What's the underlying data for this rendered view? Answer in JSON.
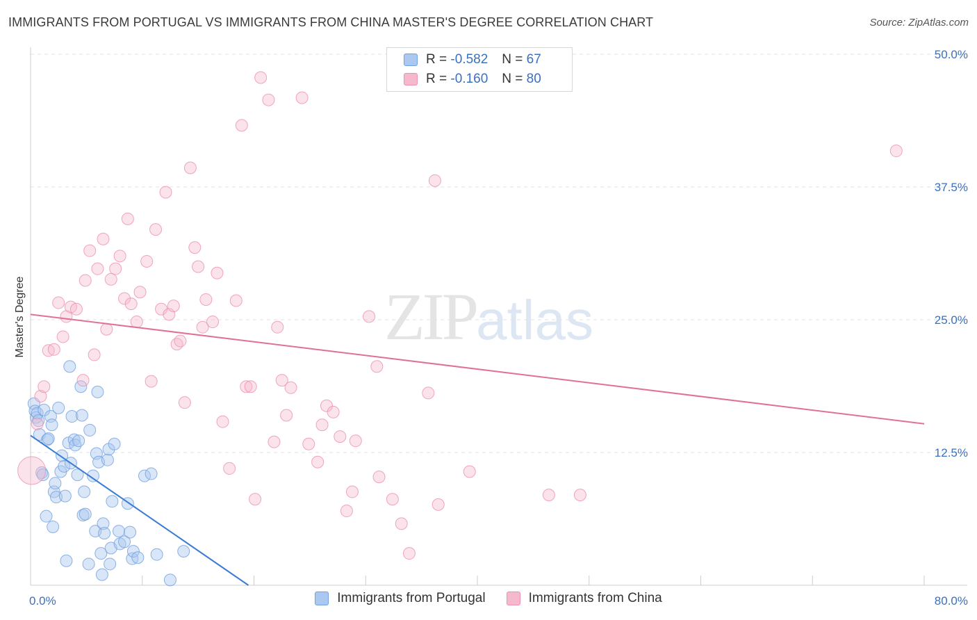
{
  "title": "IMMIGRANTS FROM PORTUGAL VS IMMIGRANTS FROM CHINA MASTER'S DEGREE CORRELATION CHART",
  "source": "Source: ZipAtlas.com",
  "watermark": {
    "zip": "ZIP",
    "atlas": "atlas"
  },
  "legend": {
    "rows": [
      {
        "r_label": "R = ",
        "r_value": "-0.582",
        "n_label": "N = ",
        "n_value": "67",
        "color": "#aac8f0"
      },
      {
        "r_label": "R = ",
        "r_value": "-0.160",
        "n_label": "N = ",
        "n_value": "80",
        "color": "#f5b8cc"
      }
    ]
  },
  "colors": {
    "portugal": "#6fa0e0",
    "china": "#ee8fb0",
    "portugal_line": "#3a7bd5",
    "china_line": "#e0709a"
  },
  "chart_data": {
    "type": "scatter",
    "title": "IMMIGRANTS FROM PORTUGAL VS IMMIGRANTS FROM CHINA MASTER'S DEGREE CORRELATION CHART",
    "ylabel": "Master's Degree",
    "xlim": [
      0,
      80
    ],
    "ylim": [
      0,
      50
    ],
    "x_tick_labels": [
      "0.0%",
      "80.0%"
    ],
    "y_ticks": [
      12.5,
      25.0,
      37.5,
      50.0
    ],
    "y_tick_labels": [
      "12.5%",
      "25.0%",
      "37.5%",
      "50.0%"
    ],
    "grid": true,
    "legend_position": "top-center",
    "series": [
      {
        "name": "Immigrants from Portugal",
        "points": [
          [
            0.3,
            17.1
          ],
          [
            0.4,
            16.4
          ],
          [
            0.5,
            15.8
          ],
          [
            0.6,
            16.2
          ],
          [
            0.7,
            15.5
          ],
          [
            0.8,
            14.2
          ],
          [
            1.0,
            10.6
          ],
          [
            1.1,
            10.4
          ],
          [
            1.2,
            16.5
          ],
          [
            1.4,
            6.5
          ],
          [
            1.5,
            13.7
          ],
          [
            1.6,
            13.8
          ],
          [
            1.8,
            15.9
          ],
          [
            1.9,
            15.1
          ],
          [
            2.0,
            5.5
          ],
          [
            2.1,
            8.8
          ],
          [
            2.2,
            9.6
          ],
          [
            2.3,
            8.3
          ],
          [
            2.5,
            16.7
          ],
          [
            2.7,
            10.7
          ],
          [
            2.8,
            12.2
          ],
          [
            3.0,
            11.2
          ],
          [
            3.1,
            8.4
          ],
          [
            3.2,
            2.3
          ],
          [
            3.4,
            13.4
          ],
          [
            3.6,
            11.5
          ],
          [
            3.5,
            20.6
          ],
          [
            3.7,
            15.9
          ],
          [
            3.9,
            13.7
          ],
          [
            4.0,
            13.2
          ],
          [
            4.2,
            10.4
          ],
          [
            4.3,
            13.6
          ],
          [
            4.5,
            18.7
          ],
          [
            4.6,
            16.0
          ],
          [
            4.7,
            6.6
          ],
          [
            4.8,
            8.8
          ],
          [
            4.9,
            6.7
          ],
          [
            5.2,
            2.0
          ],
          [
            5.3,
            14.6
          ],
          [
            5.6,
            10.3
          ],
          [
            5.8,
            5.1
          ],
          [
            5.9,
            12.4
          ],
          [
            6.0,
            18.2
          ],
          [
            6.1,
            11.6
          ],
          [
            6.3,
            3.0
          ],
          [
            6.4,
            1.0
          ],
          [
            6.5,
            5.8
          ],
          [
            6.6,
            4.9
          ],
          [
            6.9,
            11.8
          ],
          [
            7.0,
            12.8
          ],
          [
            7.1,
            2.0
          ],
          [
            7.2,
            3.5
          ],
          [
            7.3,
            7.9
          ],
          [
            7.5,
            13.3
          ],
          [
            7.9,
            5.1
          ],
          [
            8.0,
            3.9
          ],
          [
            8.4,
            4.1
          ],
          [
            8.7,
            7.7
          ],
          [
            8.9,
            5.0
          ],
          [
            9.1,
            2.5
          ],
          [
            9.2,
            3.2
          ],
          [
            9.6,
            2.6
          ],
          [
            10.2,
            10.3
          ],
          [
            10.8,
            10.5
          ],
          [
            11.3,
            2.9
          ],
          [
            13.7,
            3.2
          ],
          [
            12.5,
            0.5
          ]
        ]
      },
      {
        "name": "Immigrants from China",
        "points": [
          [
            0.1,
            10.8
          ],
          [
            0.6,
            15.2
          ],
          [
            0.9,
            17.8
          ],
          [
            1.2,
            18.7
          ],
          [
            1.6,
            22.1
          ],
          [
            2.1,
            22.2
          ],
          [
            2.5,
            26.6
          ],
          [
            2.9,
            23.4
          ],
          [
            3.2,
            25.3
          ],
          [
            3.6,
            26.2
          ],
          [
            4.1,
            26.0
          ],
          [
            4.7,
            19.3
          ],
          [
            4.9,
            28.7
          ],
          [
            5.3,
            31.5
          ],
          [
            5.7,
            21.7
          ],
          [
            6.0,
            29.8
          ],
          [
            6.5,
            32.6
          ],
          [
            6.8,
            24.1
          ],
          [
            7.2,
            28.8
          ],
          [
            7.6,
            29.8
          ],
          [
            8.0,
            31.0
          ],
          [
            8.4,
            27.0
          ],
          [
            8.7,
            34.5
          ],
          [
            9.0,
            26.5
          ],
          [
            9.5,
            24.8
          ],
          [
            9.8,
            27.6
          ],
          [
            10.4,
            30.5
          ],
          [
            10.8,
            19.2
          ],
          [
            11.2,
            33.5
          ],
          [
            11.7,
            26.0
          ],
          [
            12.1,
            37.0
          ],
          [
            12.4,
            25.5
          ],
          [
            12.8,
            26.3
          ],
          [
            13.1,
            22.7
          ],
          [
            13.4,
            23.0
          ],
          [
            13.8,
            17.2
          ],
          [
            14.3,
            39.3
          ],
          [
            14.7,
            31.8
          ],
          [
            15.0,
            30.0
          ],
          [
            15.4,
            24.3
          ],
          [
            15.7,
            26.9
          ],
          [
            16.3,
            24.8
          ],
          [
            16.7,
            29.4
          ],
          [
            17.2,
            15.4
          ],
          [
            17.8,
            11.0
          ],
          [
            18.4,
            26.8
          ],
          [
            18.9,
            43.3
          ],
          [
            19.3,
            18.7
          ],
          [
            19.7,
            18.7
          ],
          [
            20.1,
            8.1
          ],
          [
            20.6,
            47.8
          ],
          [
            21.3,
            45.7
          ],
          [
            21.8,
            13.5
          ],
          [
            22.1,
            24.3
          ],
          [
            22.5,
            19.3
          ],
          [
            22.9,
            16.0
          ],
          [
            23.3,
            18.6
          ],
          [
            24.3,
            45.9
          ],
          [
            24.9,
            13.3
          ],
          [
            25.7,
            11.6
          ],
          [
            26.1,
            15.1
          ],
          [
            26.5,
            16.9
          ],
          [
            27.1,
            16.3
          ],
          [
            27.7,
            14.0
          ],
          [
            28.3,
            7.0
          ],
          [
            28.8,
            8.8
          ],
          [
            29.1,
            13.6
          ],
          [
            30.3,
            25.3
          ],
          [
            31.0,
            20.6
          ],
          [
            31.2,
            10.2
          ],
          [
            32.4,
            8.1
          ],
          [
            33.2,
            5.8
          ],
          [
            33.9,
            3.0
          ],
          [
            35.6,
            18.1
          ],
          [
            36.2,
            38.1
          ],
          [
            36.5,
            7.6
          ],
          [
            39.3,
            10.7
          ],
          [
            46.4,
            8.5
          ],
          [
            49.2,
            8.5
          ],
          [
            77.5,
            40.9
          ]
        ]
      }
    ],
    "trendlines": [
      {
        "series": "Immigrants from Portugal",
        "x": [
          0,
          19.5
        ],
        "y": [
          14.1,
          0.0
        ]
      },
      {
        "series": "Immigrants from China",
        "x": [
          0,
          80
        ],
        "y": [
          25.5,
          15.2
        ]
      }
    ]
  },
  "bottom_legend": {
    "items": [
      {
        "label": "Immigrants from Portugal"
      },
      {
        "label": "Immigrants from China"
      }
    ]
  }
}
